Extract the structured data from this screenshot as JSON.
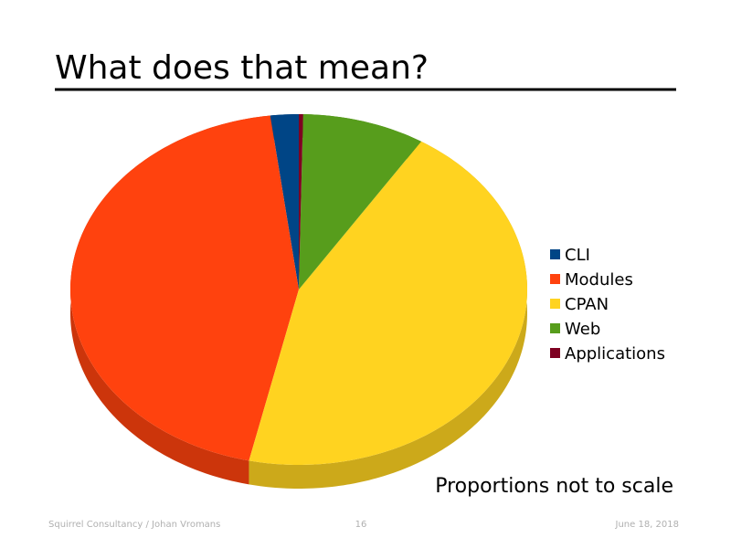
{
  "chart_data": {
    "type": "pie",
    "title": "What does that mean?",
    "categories": [
      "CLI",
      "Modules",
      "CPAN",
      "Web",
      "Applications"
    ],
    "values": [
      2,
      44.5,
      44.5,
      8.7,
      0.3
    ],
    "colors": [
      "#004586",
      "#ff420e",
      "#ffd320",
      "#579d1c",
      "#7e0021"
    ],
    "legend": "right",
    "annotation": "Proportions not to scale"
  },
  "footer": {
    "left": "Squirrel Consultancy / Johan Vromans",
    "center": "16",
    "right": "June 18, 2018"
  }
}
